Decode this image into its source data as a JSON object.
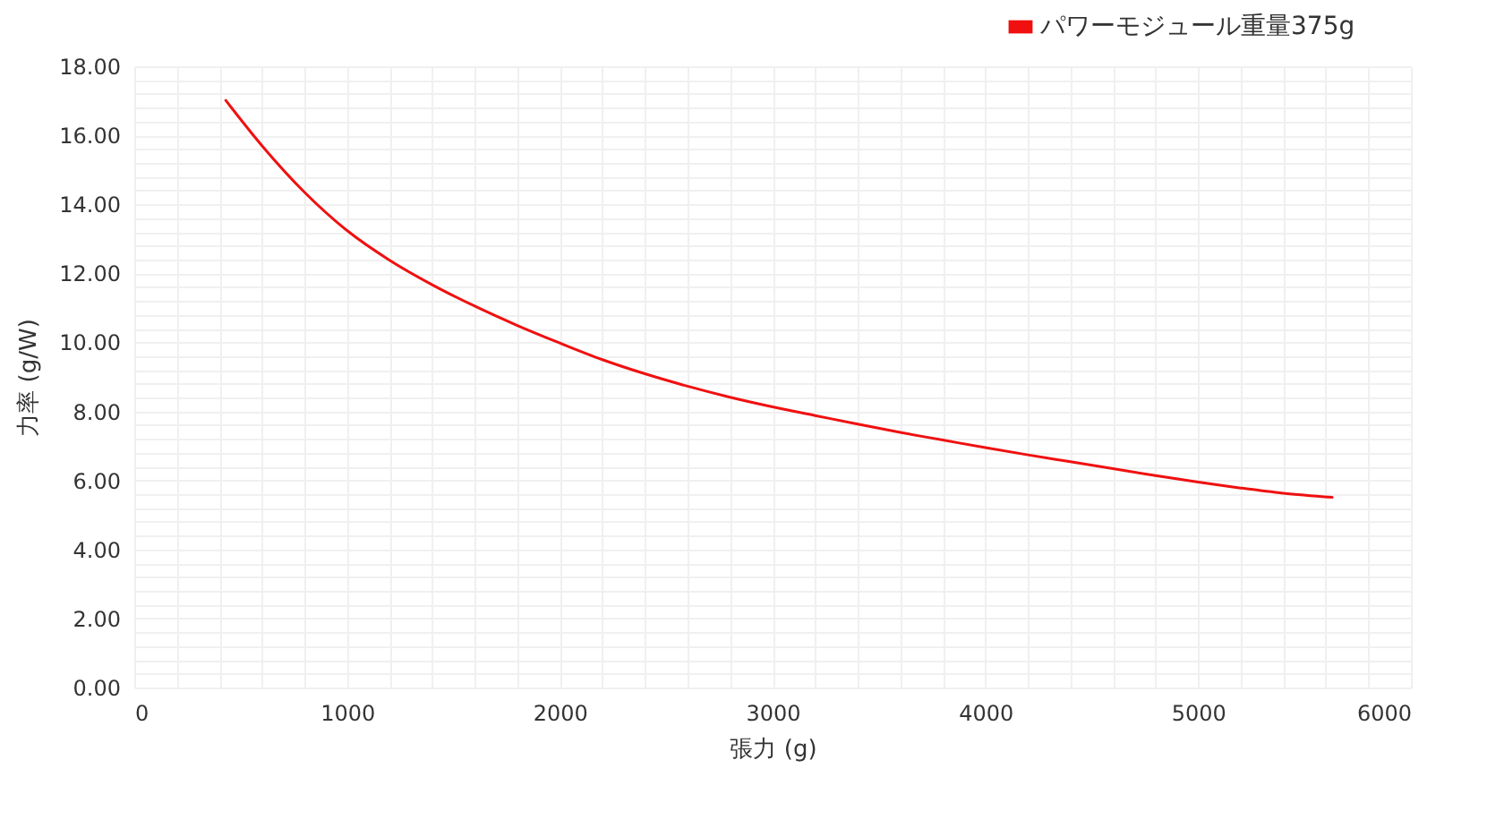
{
  "chart_data": {
    "type": "line",
    "xlabel": "張力 (g)",
    "ylabel": "力率 (g/W)",
    "x": [
      430,
      600,
      800,
      1000,
      1200,
      1400,
      1600,
      1800,
      2000,
      2200,
      2400,
      2600,
      2800,
      3000,
      3200,
      3400,
      3600,
      3800,
      4000,
      4200,
      4400,
      4600,
      4800,
      5000,
      5200,
      5400,
      5630
    ],
    "series": [
      {
        "name": "パワーモジュール重量375g",
        "color": "#f01010",
        "values": [
          17.01,
          15.7,
          14.35,
          13.24,
          12.38,
          11.67,
          11.05,
          10.49,
          9.98,
          9.5,
          9.09,
          8.73,
          8.41,
          8.13,
          7.88,
          7.63,
          7.39,
          7.17,
          6.95,
          6.74,
          6.54,
          6.34,
          6.14,
          5.95,
          5.78,
          5.63,
          5.51
        ]
      }
    ],
    "xlim": [
      0,
      6000
    ],
    "ylim": [
      0,
      18
    ],
    "xticks": [
      0,
      {
        "value": 200,
        "label": null
      },
      {
        "value": 400,
        "label": null
      },
      {
        "value": 600,
        "label": null
      },
      {
        "value": 800,
        "label": null
      },
      1000,
      {
        "value": 1200,
        "label": null
      },
      {
        "value": 1400,
        "label": null
      },
      {
        "value": 1600,
        "label": null
      },
      {
        "value": 1800,
        "label": null
      },
      2000,
      {
        "value": 2200,
        "label": null
      },
      {
        "value": 2400,
        "label": null
      },
      {
        "value": 2600,
        "label": null
      },
      {
        "value": 2800,
        "label": null
      },
      3000,
      {
        "value": 3200,
        "label": null
      },
      {
        "value": 3400,
        "label": null
      },
      {
        "value": 3600,
        "label": null
      },
      {
        "value": 3800,
        "label": null
      },
      4000,
      {
        "value": 4200,
        "label": null
      },
      {
        "value": 4400,
        "label": null
      },
      {
        "value": 4600,
        "label": null
      },
      {
        "value": 4800,
        "label": null
      },
      5000,
      {
        "value": 5200,
        "label": null
      },
      {
        "value": 5400,
        "label": null
      },
      {
        "value": 5600,
        "label": null
      },
      {
        "value": 5800,
        "label": null
      },
      6000
    ],
    "yticks": [
      {
        "value": 0,
        "label": "0.00"
      },
      {
        "value": 0.4,
        "label": null
      },
      {
        "value": 0.8,
        "label": null
      },
      {
        "value": 1.2,
        "label": null
      },
      {
        "value": 1.6,
        "label": null
      },
      {
        "value": 2,
        "label": "2.00"
      },
      {
        "value": 2.4,
        "label": null
      },
      {
        "value": 2.8,
        "label": null
      },
      {
        "value": 3.2,
        "label": null
      },
      {
        "value": 3.6,
        "label": null
      },
      {
        "value": 4,
        "label": "4.00"
      },
      {
        "value": 4.4,
        "label": null
      },
      {
        "value": 4.8,
        "label": null
      },
      {
        "value": 5.2,
        "label": null
      },
      {
        "value": 5.6,
        "label": null
      },
      {
        "value": 6,
        "label": "6.00"
      },
      {
        "value": 6.4,
        "label": null
      },
      {
        "value": 6.8,
        "label": null
      },
      {
        "value": 7.2,
        "label": null
      },
      {
        "value": 7.6,
        "label": null
      },
      {
        "value": 8,
        "label": "8.00"
      },
      {
        "value": 8.4,
        "label": null
      },
      {
        "value": 8.8,
        "label": null
      },
      {
        "value": 9.2,
        "label": null
      },
      {
        "value": 9.6,
        "label": null
      },
      {
        "value": 10,
        "label": "10.00"
      },
      {
        "value": 10.4,
        "label": null
      },
      {
        "value": 10.8,
        "label": null
      },
      {
        "value": 11.2,
        "label": null
      },
      {
        "value": 11.6,
        "label": null
      },
      {
        "value": 12,
        "label": "12.00"
      },
      {
        "value": 12.4,
        "label": null
      },
      {
        "value": 12.8,
        "label": null
      },
      {
        "value": 13.2,
        "label": null
      },
      {
        "value": 13.6,
        "label": null
      },
      {
        "value": 14,
        "label": "14.00"
      },
      {
        "value": 14.4,
        "label": null
      },
      {
        "value": 14.8,
        "label": null
      },
      {
        "value": 15.2,
        "label": null
      },
      {
        "value": 15.6,
        "label": null
      },
      {
        "value": 16,
        "label": "16.00"
      },
      {
        "value": 16.4,
        "label": null
      },
      {
        "value": 16.8,
        "label": null
      },
      {
        "value": 17.2,
        "label": null
      },
      {
        "value": 17.6,
        "label": null
      },
      {
        "value": 18,
        "label": "18.00"
      }
    ],
    "grid": true,
    "legend": "top right"
  }
}
